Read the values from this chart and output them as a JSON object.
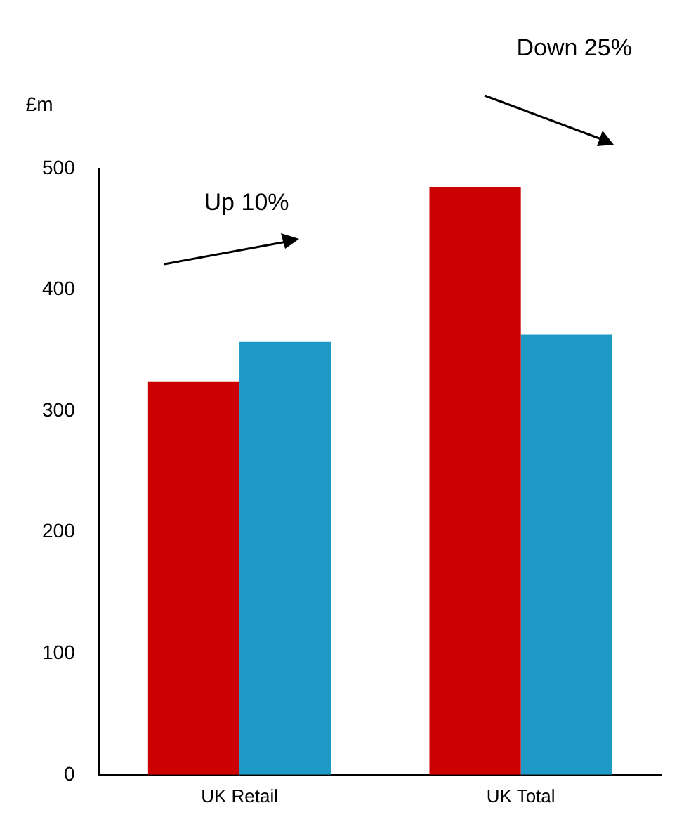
{
  "chart_data": {
    "type": "bar",
    "ylabel": "£m",
    "categories": [
      "UK Retail",
      "UK Total"
    ],
    "series": [
      {
        "color": "#cc0000",
        "values": [
          324,
          485
        ]
      },
      {
        "color": "#1f9ac6",
        "values": [
          357,
          363
        ]
      }
    ],
    "ylim": [
      0,
      500
    ],
    "yticks": [
      0,
      100,
      200,
      300,
      400,
      500
    ],
    "grid": false,
    "legend": false,
    "annotations": [
      "Up 10%",
      "Down 25%"
    ]
  }
}
